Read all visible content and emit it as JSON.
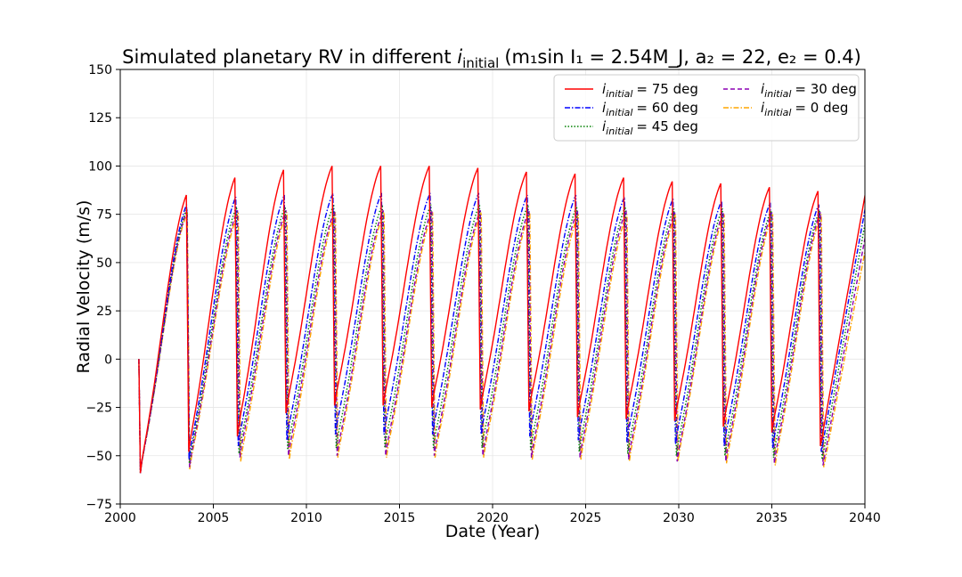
{
  "chart_data": {
    "type": "line",
    "title": {
      "prefix": "Simulated planetary RV in different ",
      "var": "i",
      "var_sub": "initial",
      "params": "(m₁sin I₁ = 2.54M_J, a₂ = 22, e₂ = 0.4)"
    },
    "xlabel": "Date (Year)",
    "ylabel": "Radial Velocity (m/s)",
    "xlim": [
      2000,
      2040
    ],
    "ylim": [
      -75,
      150
    ],
    "xticks": [
      2000,
      2005,
      2010,
      2015,
      2020,
      2025,
      2030,
      2035,
      2040
    ],
    "yticks": [
      -75,
      -50,
      -25,
      0,
      25,
      50,
      75,
      100,
      125,
      150
    ],
    "grid": true,
    "legend_position": "top-right",
    "start_x": 2001.0,
    "start_y": 0,
    "period_years": 2.61,
    "series": [
      {
        "name_var": "i",
        "name_sub": "initial",
        "name_rest": "= 75 deg",
        "color": "#ff0000",
        "dash": "solid",
        "peaks": [
          85,
          94,
          98,
          100,
          100,
          100,
          99,
          97,
          96,
          94,
          92,
          91,
          89,
          87
        ],
        "troughs": [
          -59,
          -48,
          -40,
          -28,
          -24,
          -24,
          -25,
          -26,
          -27,
          -30,
          -31,
          -32,
          -35,
          -38,
          -45
        ]
      },
      {
        "name_var": "i",
        "name_sub": "initial",
        "name_rest": "= 60 deg",
        "color": "#0000ff",
        "dash": "dashdot",
        "peaks": [
          80,
          84,
          85,
          86,
          86,
          86,
          86,
          85,
          85,
          84,
          83,
          82,
          81,
          80
        ],
        "troughs": [
          -59,
          -52,
          -45,
          -42,
          -39,
          -39,
          -39,
          -39,
          -40,
          -42,
          -43,
          -44,
          -45,
          -46,
          -48
        ]
      },
      {
        "name_var": "i",
        "name_sub": "initial",
        "name_rest": "= 45 deg",
        "color": "#008000",
        "dash": "dotted",
        "peaks": [
          78,
          79,
          79,
          80,
          80,
          80,
          80,
          80,
          79,
          79,
          78,
          78,
          77,
          77
        ],
        "troughs": [
          -59,
          -54,
          -49,
          -47,
          -46,
          -46,
          -46,
          -46,
          -47,
          -48,
          -49,
          -50,
          -50,
          -51,
          -52
        ]
      },
      {
        "name_var": "i",
        "name_sub": "initial",
        "name_rest": "= 30 deg",
        "color": "#8b00b3",
        "dash": "dashed",
        "peaks": [
          77,
          77,
          77,
          77,
          77,
          77,
          77,
          77,
          77,
          77,
          76,
          76,
          76,
          76
        ],
        "troughs": [
          -59,
          -56,
          -51,
          -50,
          -50,
          -50,
          -50,
          -50,
          -51,
          -51,
          -52,
          -53,
          -53,
          -54,
          -55
        ]
      },
      {
        "name_var": "i",
        "name_sub": "initial",
        "name_rest": "= 0 deg",
        "color": "#ffa500",
        "dash": "dashdot",
        "peaks": [
          76,
          76,
          76,
          76,
          76,
          76,
          76,
          76,
          75,
          75,
          75,
          75,
          75,
          75
        ],
        "troughs": [
          -59,
          -57,
          -53,
          -52,
          -51,
          -51,
          -51,
          -51,
          -52,
          -52,
          -53,
          -53,
          -54,
          -55,
          -56
        ]
      }
    ]
  }
}
